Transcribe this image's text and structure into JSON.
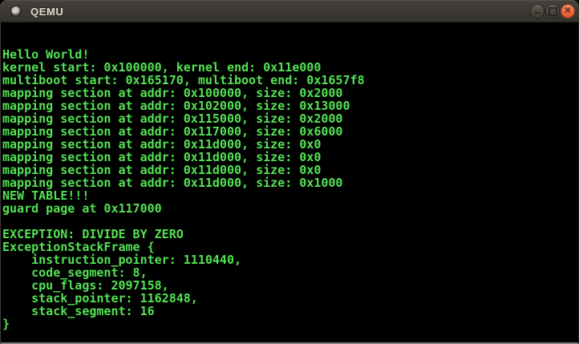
{
  "window": {
    "title": "QEMU",
    "titlebar_background": "#3a3832",
    "title_color": "#dfdbd2",
    "controls": {
      "minimize": "minimize",
      "maximize": "maximize",
      "close": "close",
      "close_glyph": "✕",
      "close_color": "#ec6a3f"
    }
  },
  "console": {
    "background": "#000000",
    "text_color": "#54e254",
    "lines": [
      "Hello World!",
      "kernel start: 0x100000, kernel end: 0x11e000",
      "multiboot start: 0x165170, multiboot end: 0x1657f8",
      "mapping section at addr: 0x100000, size: 0x2000",
      "mapping section at addr: 0x102000, size: 0x13000",
      "mapping section at addr: 0x115000, size: 0x2000",
      "mapping section at addr: 0x117000, size: 0x6000",
      "mapping section at addr: 0x11d000, size: 0x0",
      "mapping section at addr: 0x11d000, size: 0x0",
      "mapping section at addr: 0x11d000, size: 0x0",
      "mapping section at addr: 0x11d000, size: 0x1000",
      "NEW TABLE!!!",
      "guard page at 0x117000",
      "",
      "EXCEPTION: DIVIDE BY ZERO",
      "ExceptionStackFrame {",
      "    instruction_pointer: 1110440,",
      "    code_segment: 8,",
      "    cpu_flags: 2097158,",
      "    stack_pointer: 1162848,",
      "    stack_segment: 16",
      "}"
    ]
  }
}
